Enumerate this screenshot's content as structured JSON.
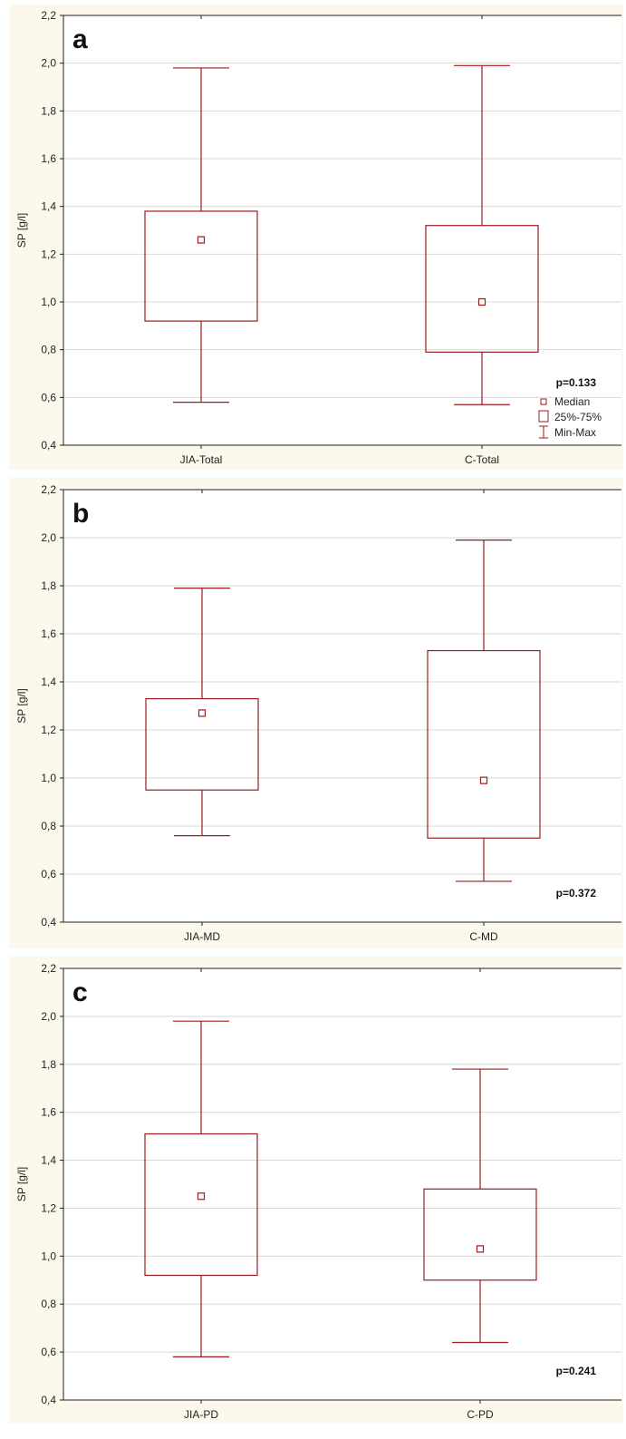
{
  "colors": {
    "panel_bg": "#fdf8ec",
    "plot_bg": "#ffffff",
    "box": "#9b1b1f",
    "axis": "#222222",
    "grid": "#d9d9d9"
  },
  "legend": {
    "median": "Median",
    "box": "25%-75%",
    "range": "Min-Max"
  },
  "chart_data": [
    {
      "type": "box",
      "panel_label": "a",
      "ylabel": "SP [g/l]",
      "ylim": [
        0.4,
        2.2
      ],
      "yticks": [
        "0,4",
        "0,6",
        "0,8",
        "1,0",
        "1,2",
        "1,4",
        "1,6",
        "1,8",
        "2,0",
        "2,2"
      ],
      "categories": [
        "JIA-Total",
        "C-Total"
      ],
      "series": [
        {
          "category": "JIA-Total",
          "min": 0.58,
          "q1": 0.92,
          "median": 1.26,
          "q3": 1.38,
          "max": 1.98
        },
        {
          "category": "C-Total",
          "min": 0.57,
          "q1": 0.79,
          "median": 1.0,
          "q3": 1.32,
          "max": 1.99
        }
      ],
      "annotation": "p=0.133",
      "show_legend": true
    },
    {
      "type": "box",
      "panel_label": "b",
      "ylabel": "SP [g/l]",
      "ylim": [
        0.4,
        2.2
      ],
      "yticks": [
        "0,4",
        "0,6",
        "0,8",
        "1,0",
        "1,2",
        "1,4",
        "1,6",
        "1,8",
        "2,0",
        "2,2"
      ],
      "categories": [
        "JIA-MD",
        "C-MD"
      ],
      "series": [
        {
          "category": "JIA-MD",
          "min": 0.76,
          "q1": 0.95,
          "median": 1.27,
          "q3": 1.33,
          "max": 1.79
        },
        {
          "category": "C-MD",
          "min": 0.57,
          "q1": 0.75,
          "median": 0.99,
          "q3": 1.53,
          "max": 1.99
        }
      ],
      "annotation": "p=0.372",
      "show_legend": false
    },
    {
      "type": "box",
      "panel_label": "c",
      "ylabel": "SP [g/l]",
      "ylim": [
        0.4,
        2.2
      ],
      "yticks": [
        "0,4",
        "0,6",
        "0,8",
        "1,0",
        "1,2",
        "1,4",
        "1,6",
        "1,8",
        "2,0",
        "2,2"
      ],
      "categories": [
        "JIA-PD",
        "C-PD"
      ],
      "series": [
        {
          "category": "JIA-PD",
          "min": 0.58,
          "q1": 0.92,
          "median": 1.25,
          "q3": 1.51,
          "max": 1.98
        },
        {
          "category": "C-PD",
          "min": 0.64,
          "q1": 0.9,
          "median": 1.03,
          "q3": 1.28,
          "max": 1.78
        }
      ],
      "annotation": "p=0.241",
      "show_legend": false
    }
  ]
}
